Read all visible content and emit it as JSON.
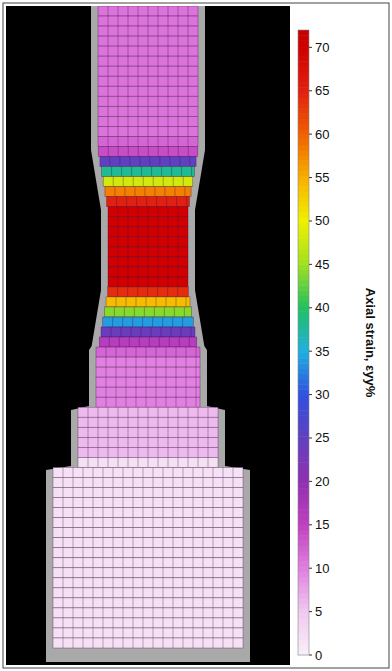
{
  "chart_data": {
    "type": "heatmap",
    "colorbar_label": "Axial strain, εyy%",
    "cells": [
      11,
      11,
      11,
      11,
      11,
      11,
      11,
      11,
      11,
      11,
      11,
      11,
      11,
      12,
      14,
      25,
      38,
      48,
      58,
      65,
      70,
      70,
      70,
      70,
      70,
      70,
      70,
      70,
      64,
      54,
      44,
      34,
      24,
      16,
      12,
      10,
      10,
      10,
      10,
      10,
      6,
      6,
      6,
      6,
      6,
      2,
      2,
      2,
      2,
      2,
      2,
      2,
      2,
      2,
      2,
      2,
      2,
      2,
      2,
      2,
      2,
      2,
      2,
      2
    ],
    "colorbar_lim": [
      0,
      72
    ],
    "colorbar_ticks": [
      0,
      5,
      10,
      15,
      20,
      25,
      30,
      35,
      40,
      45,
      50,
      55,
      60,
      65,
      70
    ]
  }
}
